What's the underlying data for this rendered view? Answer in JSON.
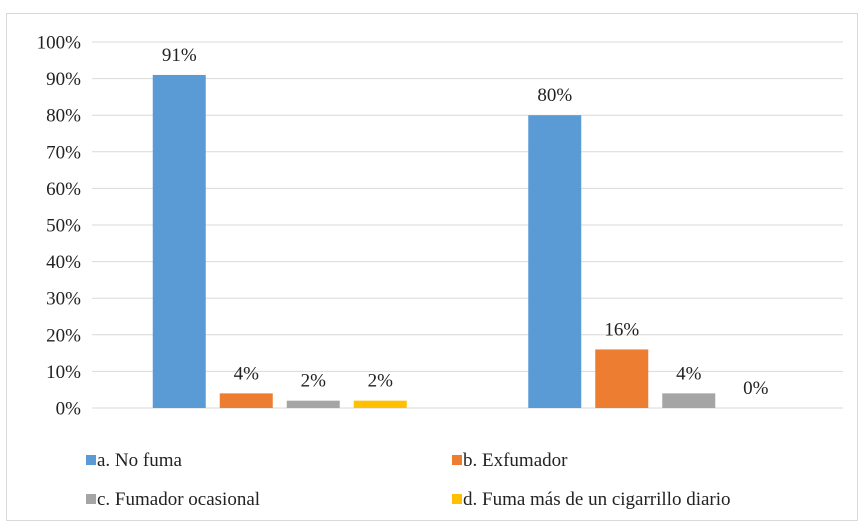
{
  "chart_data": {
    "type": "bar",
    "categories": [
      "",
      ""
    ],
    "series": [
      {
        "name": "a. No fuma",
        "color": "#5b9bd5",
        "values": [
          91,
          80
        ],
        "labels": [
          "91%",
          "80%"
        ]
      },
      {
        "name": "b. Exfumador",
        "color": "#ed7d31",
        "values": [
          4,
          16
        ],
        "labels": [
          "4%",
          "16%"
        ]
      },
      {
        "name": "c. Fumador ocasional",
        "color": "#a5a5a5",
        "values": [
          2,
          4
        ],
        "labels": [
          "2%",
          "4%"
        ]
      },
      {
        "name": "d. Fuma más de un cigarrillo diario",
        "color": "#ffc000",
        "values": [
          2,
          0
        ],
        "labels": [
          "2%",
          "0%"
        ]
      }
    ],
    "ylim": [
      0,
      100
    ],
    "yticks": [
      "0%",
      "10%",
      "20%",
      "30%",
      "40%",
      "50%",
      "60%",
      "70%",
      "80%",
      "90%",
      "100%"
    ],
    "grid": true,
    "legend_position": "bottom",
    "title": "",
    "xlabel": "",
    "ylabel": ""
  }
}
